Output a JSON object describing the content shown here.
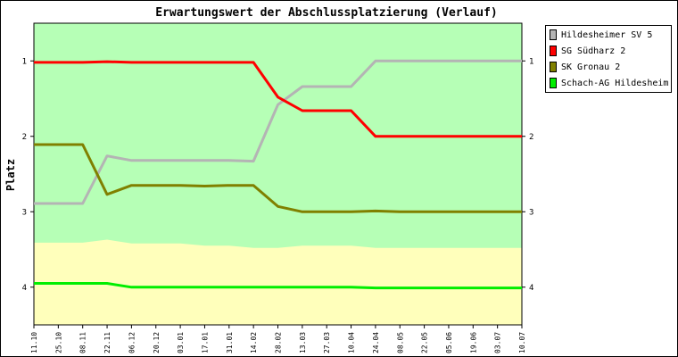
{
  "chart_data": {
    "type": "line",
    "title": "Erwartungswert der Abschlussplatzierung (Verlauf)",
    "ylabel": "Platz",
    "xlabel": "",
    "ylim": [
      0.5,
      4.5
    ],
    "y_inverted": true,
    "y_ticks": [
      "1",
      "2",
      "3",
      "4"
    ],
    "categories": [
      "11.10",
      "25.10",
      "08.11",
      "22.11",
      "06.12",
      "20.12",
      "03.01",
      "17.01",
      "31.01",
      "14.02",
      "28.02",
      "13.03",
      "27.03",
      "10.04",
      "24.04",
      "08.05",
      "22.05",
      "05.06",
      "19.06",
      "03.07",
      "10.07"
    ],
    "bands": [
      {
        "color": "#b6ffb6",
        "from_series": "SK Gronau 2",
        "label": ""
      },
      {
        "color": "#ffffbb",
        "label": ""
      }
    ],
    "series": [
      {
        "name": "Hildesheimer SV 5",
        "color": "#b4b4b4",
        "values": [
          2.89,
          2.89,
          2.89,
          2.26,
          2.32,
          2.32,
          2.32,
          2.32,
          2.32,
          2.33,
          1.58,
          1.34,
          1.34,
          1.34,
          1.0,
          1.0,
          1.0,
          1.0,
          1.0,
          1.0,
          1.0
        ]
      },
      {
        "name": "SG Südharz 2",
        "color": "#ff0000",
        "values": [
          1.02,
          1.02,
          1.02,
          1.01,
          1.02,
          1.02,
          1.02,
          1.02,
          1.02,
          1.02,
          1.48,
          1.66,
          1.66,
          1.66,
          2.0,
          2.0,
          2.0,
          2.0,
          2.0,
          2.0,
          2.0
        ]
      },
      {
        "name": "SK Gronau 2",
        "color": "#808000",
        "values": [
          2.11,
          2.11,
          2.11,
          2.77,
          2.65,
          2.65,
          2.65,
          2.66,
          2.65,
          2.65,
          2.93,
          3.0,
          3.0,
          3.0,
          2.99,
          3.0,
          3.0,
          3.0,
          3.0,
          3.0,
          3.0
        ]
      },
      {
        "name": "Schach-AG Hildesheim",
        "color": "#00ee00",
        "values": [
          3.95,
          3.95,
          3.95,
          3.95,
          4.0,
          4.0,
          4.0,
          4.0,
          4.0,
          4.0,
          4.0,
          4.0,
          4.0,
          4.0,
          4.01,
          4.01,
          4.01,
          4.01,
          4.01,
          4.01,
          4.01
        ]
      }
    ],
    "band_boundary": [
      3.41,
      3.41,
      3.41,
      3.37,
      3.42,
      3.42,
      3.42,
      3.45,
      3.45,
      3.48,
      3.48,
      3.45,
      3.45,
      3.45,
      3.48,
      3.48,
      3.48,
      3.48,
      3.48,
      3.48,
      3.48
    ],
    "grid": false,
    "legend_position": "right"
  }
}
